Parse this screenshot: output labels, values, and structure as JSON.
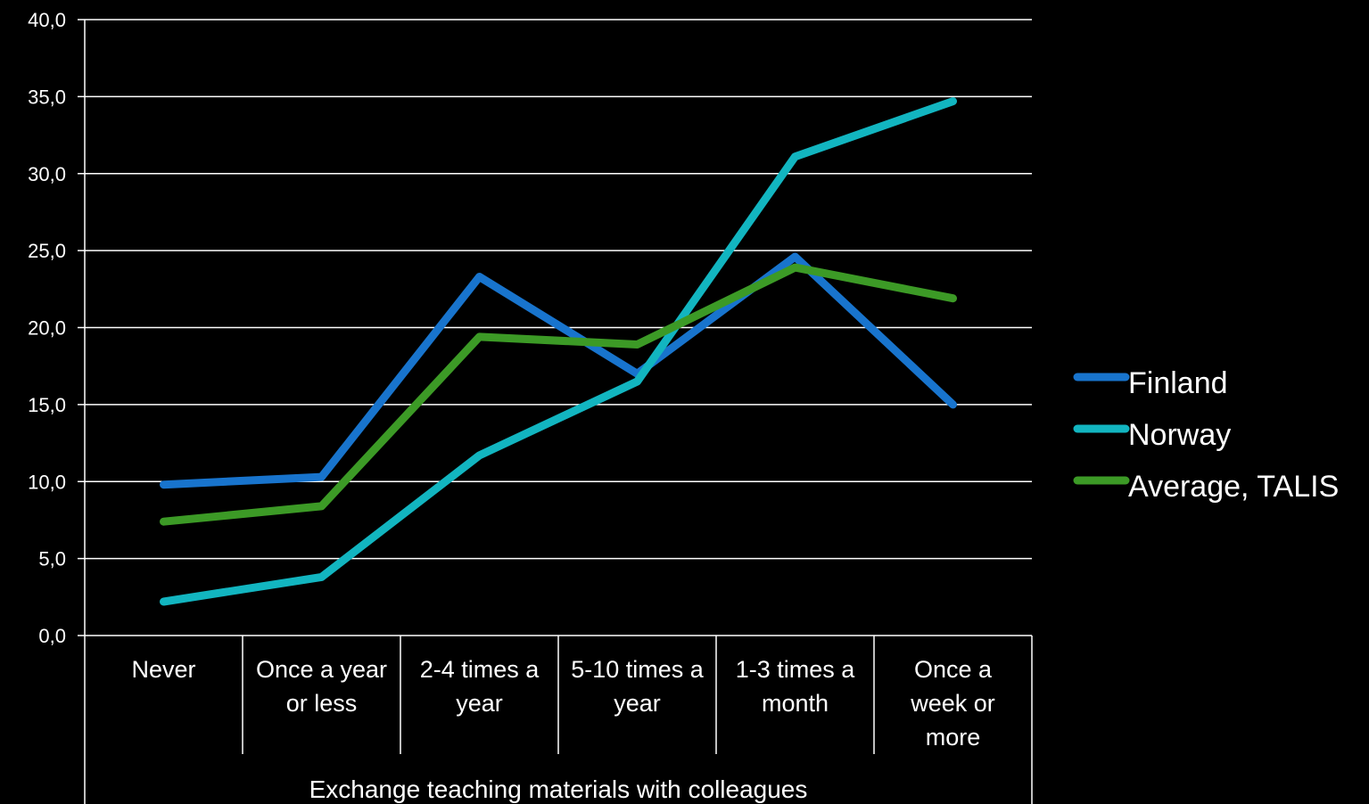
{
  "chart_data": {
    "type": "line",
    "title": "",
    "xlabel": "Exchange teaching materials with colleagues",
    "ylabel": "",
    "categories": [
      [
        "Never"
      ],
      [
        "Once a year",
        "or less"
      ],
      [
        "2-4 times a",
        "year"
      ],
      [
        "5-10 times a",
        "year"
      ],
      [
        "1-3 times a",
        "month"
      ],
      [
        "Once a",
        "week or",
        "more"
      ]
    ],
    "ylim": [
      0,
      40
    ],
    "ytick_step": 5,
    "ytick_labels": [
      "0,0",
      "5,0",
      "10,0",
      "15,0",
      "20,0",
      "25,0",
      "30,0",
      "35,0",
      "40,0"
    ],
    "grid": true,
    "legend_position": "right",
    "series": [
      {
        "name": "Finland",
        "color": "#1874cd",
        "values": [
          9.8,
          10.3,
          23.3,
          17.0,
          24.6,
          15.0
        ]
      },
      {
        "name": "Norway",
        "color": "#12b5c0",
        "values": [
          2.2,
          3.8,
          11.7,
          16.5,
          31.1,
          34.7
        ]
      },
      {
        "name": "Average, TALIS",
        "color": "#3c9a26",
        "values": [
          7.4,
          8.4,
          19.4,
          18.9,
          23.9,
          21.9
        ]
      }
    ]
  }
}
